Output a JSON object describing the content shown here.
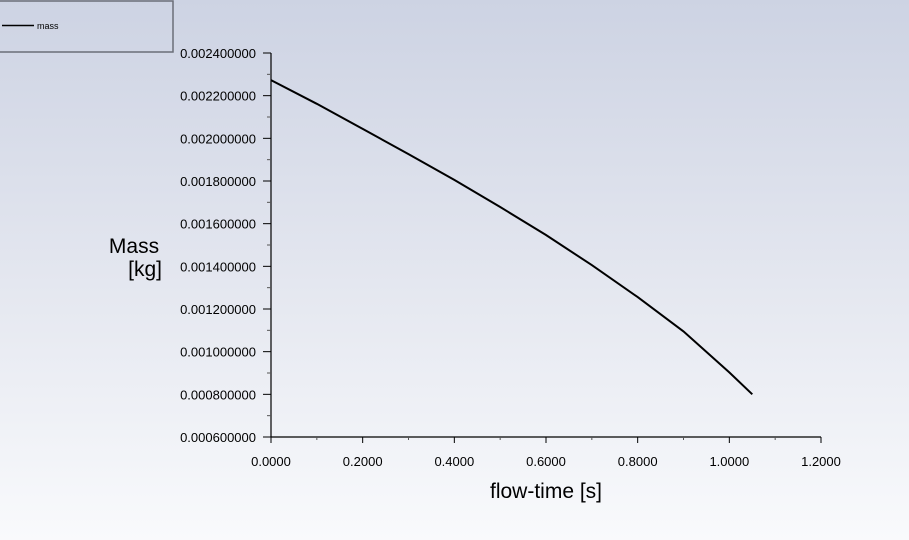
{
  "chart_data": {
    "type": "line",
    "title": "",
    "xlabel": "flow-time [s]",
    "ylabel_line1": "Mass",
    "ylabel_line2": "[kg]",
    "xlim": [
      0,
      1.2
    ],
    "ylim": [
      0.0006,
      0.0024
    ],
    "x_ticks": [
      "0.0000",
      "0.2000",
      "0.4000",
      "0.6000",
      "0.8000",
      "1.0000",
      "1.2000"
    ],
    "y_ticks": [
      "0.000600000",
      "0.000800000",
      "0.001000000",
      "0.001200000",
      "0.001400000",
      "0.001600000",
      "0.001800000",
      "0.002000000",
      "0.002200000",
      "0.002400000"
    ],
    "legend": {
      "placement": "top-left",
      "entries": [
        "mass"
      ]
    },
    "grid": false,
    "series": [
      {
        "name": "mass",
        "color": "#000000",
        "x": [
          0,
          0.1,
          0.2,
          0.3,
          0.4,
          0.5,
          0.6,
          0.7,
          0.8,
          0.9,
          1.0,
          1.05
        ],
        "y": [
          0.002273,
          0.002162,
          0.002044,
          0.001926,
          0.001805,
          0.001678,
          0.001547,
          0.001406,
          0.001256,
          0.001095,
          0.000903,
          0.0008
        ]
      }
    ]
  }
}
